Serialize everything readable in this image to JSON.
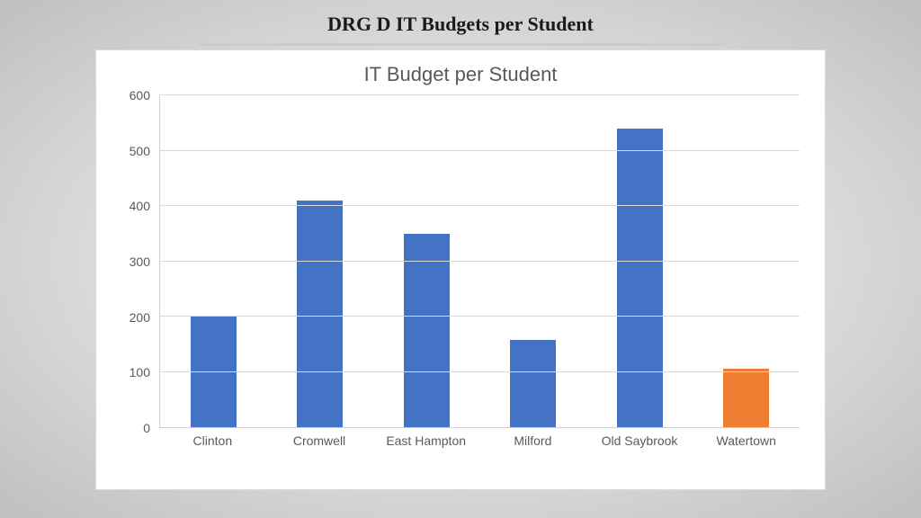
{
  "page": {
    "heading": "DRG D IT Budgets per Student"
  },
  "chart": {
    "type": "bar",
    "title": "IT Budget per Student",
    "title_fontsize": 22,
    "title_color": "#595959",
    "categories": [
      "Clinton",
      "Cromwell",
      "East Hampton",
      "Milford",
      "Old Saybrook",
      "Watertown"
    ],
    "values": [
      200,
      410,
      350,
      158,
      540,
      105
    ],
    "bar_colors": [
      "#4472c4",
      "#4472c4",
      "#4472c4",
      "#4472c4",
      "#4472c4",
      "#ed7d31"
    ],
    "bar_width": 0.43,
    "ylim": [
      0,
      600
    ],
    "ytick_step": 100,
    "y_ticks": [
      0,
      100,
      200,
      300,
      400,
      500,
      600
    ],
    "grid_color": "#d9d9d9",
    "axis_line_color": "#cfcfcf",
    "background_color": "#ffffff",
    "axis_label_fontsize": 14,
    "axis_label_color": "#595959"
  },
  "slide": {
    "background_gradient": [
      "#f5f5f5",
      "#d8d8d8",
      "#bfbfbf"
    ]
  }
}
